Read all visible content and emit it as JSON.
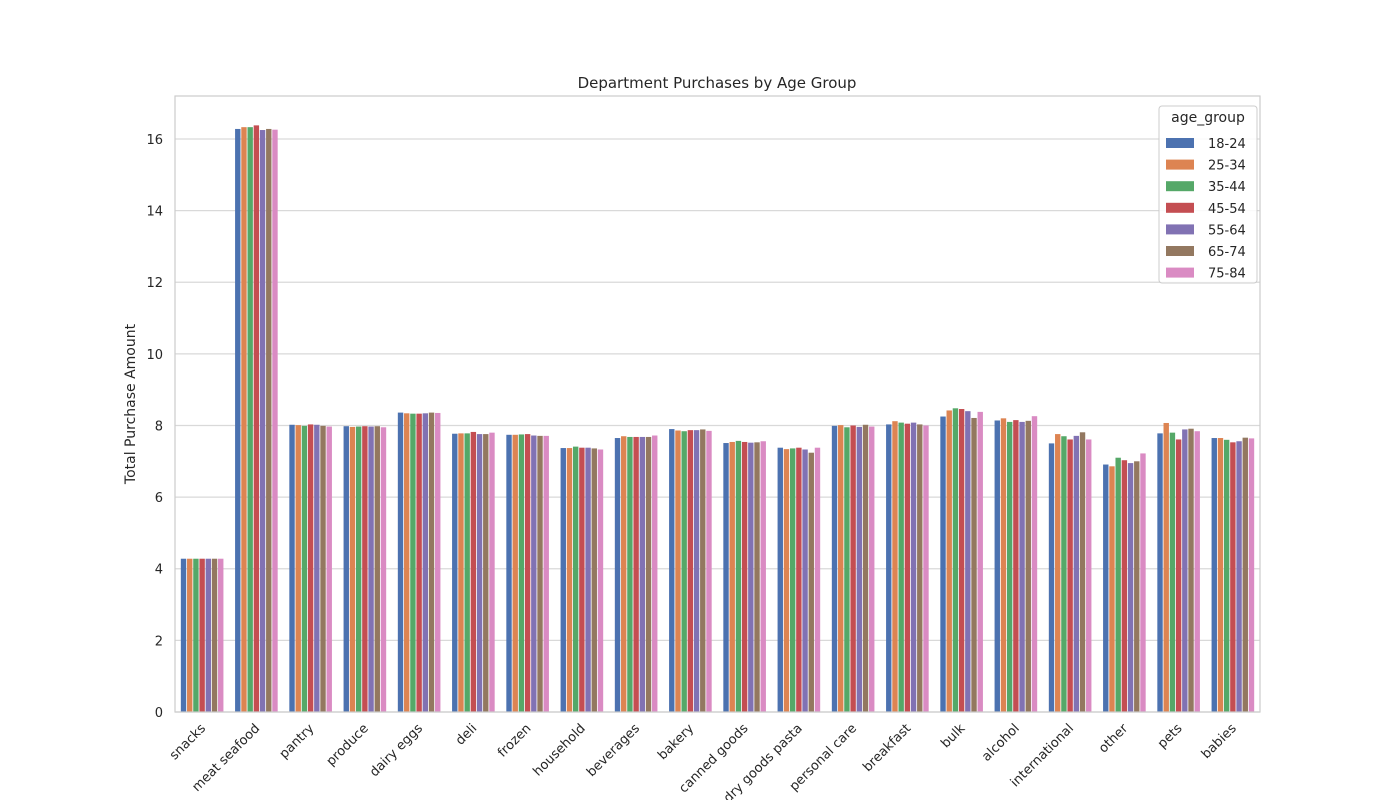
{
  "chart_data": {
    "type": "bar",
    "title": "Department Purchases by Age Group",
    "xlabel": "",
    "ylabel": "Total Purchase Amount",
    "ylim": [
      0,
      17.2
    ],
    "yticks": [
      0,
      2,
      4,
      6,
      8,
      10,
      12,
      14,
      16
    ],
    "grid": "horizontal",
    "legend_title": "age_group",
    "legend_position": "top-right",
    "categories": [
      "snacks",
      "meat seafood",
      "pantry",
      "produce",
      "dairy eggs",
      "deli",
      "frozen",
      "household",
      "beverages",
      "bakery",
      "canned goods",
      "dry goods pasta",
      "personal care",
      "breakfast",
      "bulk",
      "alcohol",
      "international",
      "other",
      "pets",
      "babies"
    ],
    "series": [
      {
        "name": "18-24",
        "color": "#4c72b0",
        "values": [
          4.28,
          16.28,
          8.02,
          7.98,
          8.36,
          7.77,
          7.74,
          7.37,
          7.65,
          7.9,
          7.51,
          7.38,
          7.99,
          8.03,
          8.25,
          8.14,
          7.5,
          6.91,
          7.78,
          7.65
        ]
      },
      {
        "name": "25-34",
        "color": "#dd8452",
        "values": [
          4.28,
          16.33,
          8.01,
          7.96,
          8.34,
          7.78,
          7.74,
          7.37,
          7.7,
          7.86,
          7.54,
          7.34,
          8.01,
          8.12,
          8.42,
          8.2,
          7.76,
          6.86,
          8.07,
          7.65
        ]
      },
      {
        "name": "35-44",
        "color": "#55a868",
        "values": [
          4.28,
          16.33,
          7.99,
          7.97,
          8.33,
          7.78,
          7.75,
          7.41,
          7.68,
          7.84,
          7.57,
          7.36,
          7.95,
          8.08,
          8.48,
          8.1,
          7.7,
          7.1,
          7.8,
          7.6
        ]
      },
      {
        "name": "45-54",
        "color": "#c44e52",
        "values": [
          4.28,
          16.38,
          8.03,
          7.98,
          8.33,
          7.82,
          7.76,
          7.38,
          7.68,
          7.87,
          7.54,
          7.38,
          8.0,
          8.05,
          8.46,
          8.15,
          7.61,
          7.03,
          7.61,
          7.53
        ]
      },
      {
        "name": "55-64",
        "color": "#8172b3",
        "values": [
          4.28,
          16.25,
          8.02,
          7.97,
          8.34,
          7.76,
          7.72,
          7.38,
          7.68,
          7.87,
          7.52,
          7.33,
          7.96,
          8.08,
          8.4,
          8.1,
          7.71,
          6.95,
          7.89,
          7.56
        ]
      },
      {
        "name": "65-74",
        "color": "#937860",
        "values": [
          4.28,
          16.28,
          7.99,
          7.98,
          8.36,
          7.76,
          7.71,
          7.36,
          7.68,
          7.89,
          7.53,
          7.24,
          8.02,
          8.03,
          8.21,
          8.13,
          7.81,
          7.0,
          7.91,
          7.66
        ]
      },
      {
        "name": "75-84",
        "color": "#da8bc3",
        "values": [
          4.28,
          16.26,
          7.97,
          7.95,
          8.35,
          7.8,
          7.71,
          7.33,
          7.72,
          7.85,
          7.56,
          7.38,
          7.97,
          8.0,
          8.38,
          8.26,
          7.61,
          7.22,
          7.84,
          7.64
        ]
      }
    ]
  }
}
